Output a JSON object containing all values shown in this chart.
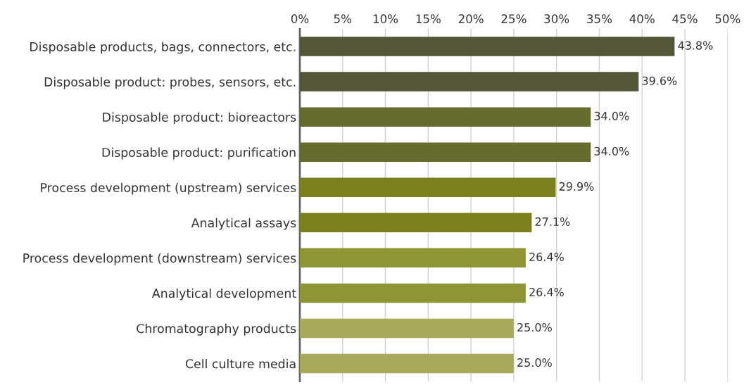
{
  "chart_data": {
    "type": "bar",
    "orientation": "horizontal",
    "categories": [
      "Disposable products, bags, connectors, etc.",
      "Disposable product: probes, sensors, etc.",
      "Disposable product: bioreactors",
      "Disposable product: purification",
      "Process development (upstream) services",
      "Analytical assays",
      "Process development (downstream) services",
      "Analytical development",
      "Chromatography products",
      "Cell culture media"
    ],
    "values": [
      43.8,
      39.6,
      34.0,
      34.0,
      29.9,
      27.1,
      26.4,
      26.4,
      25.0,
      25.0
    ],
    "value_labels": [
      "43.8%",
      "39.6%",
      "34.0%",
      "34.0%",
      "29.9%",
      "27.1%",
      "26.4%",
      "26.4%",
      "25.0%",
      "25.0%"
    ],
    "colors": [
      "#535738",
      "#535738",
      "#666b2e",
      "#666b2e",
      "#7b801e",
      "#7b801e",
      "#8e9535",
      "#8e9535",
      "#a8aa5a",
      "#a8aa5a"
    ],
    "xlim": [
      0,
      50
    ],
    "xticks": [
      {
        "value": 0,
        "label": "0%"
      },
      {
        "value": 5,
        "label": "5%"
      },
      {
        "value": 10,
        "label": "10%"
      },
      {
        "value": 15,
        "label": "15%"
      },
      {
        "value": 20,
        "label": "20%"
      },
      {
        "value": 25,
        "label": "25%"
      },
      {
        "value": 30,
        "label": "30%"
      },
      {
        "value": 35,
        "label": "35%"
      },
      {
        "value": 40,
        "label": "40%"
      },
      {
        "value": 45,
        "label": "45%"
      },
      {
        "value": 50,
        "label": "50%"
      }
    ],
    "grid": "x",
    "legend": false
  }
}
